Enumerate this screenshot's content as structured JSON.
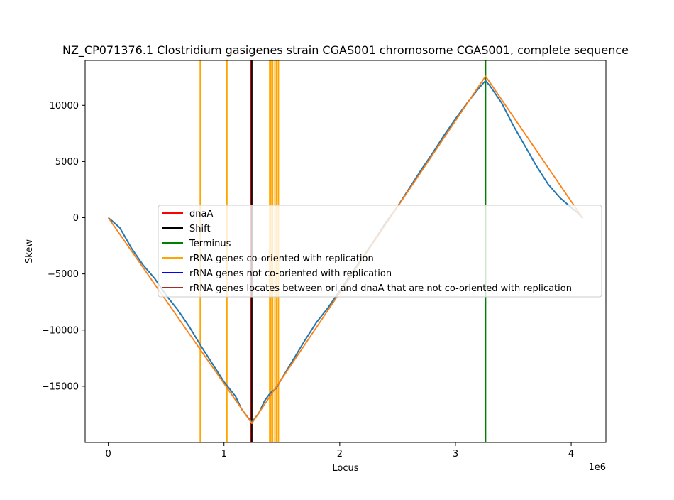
{
  "chart_data": {
    "type": "line",
    "title": "NZ_CP071376.1 Clostridium gasigenes strain CGAS001 chromosome CGAS001, complete sequence",
    "xlabel": "Locus",
    "ylabel": "Skew",
    "x_offset_label": "1e6",
    "xlim": [
      -200000,
      4300000
    ],
    "ylim": [
      -20000,
      14000
    ],
    "x_ticks": [
      0,
      1000000,
      2000000,
      3000000,
      4000000
    ],
    "x_tick_labels": [
      "0",
      "1",
      "2",
      "3",
      "4"
    ],
    "y_ticks": [
      -15000,
      -10000,
      -5000,
      0,
      5000,
      10000
    ],
    "y_tick_labels": [
      "−15000",
      "−10000",
      "−5000",
      "0",
      "5000",
      "10000"
    ],
    "grid": false,
    "legend_position": "center",
    "series": [
      {
        "color": "#1f77b4",
        "points": [
          [
            0,
            0
          ],
          [
            30000,
            -250
          ],
          [
            100000,
            -900
          ],
          [
            200000,
            -2700
          ],
          [
            300000,
            -4200
          ],
          [
            400000,
            -5400
          ],
          [
            500000,
            -6900
          ],
          [
            600000,
            -8200
          ],
          [
            700000,
            -9700
          ],
          [
            800000,
            -11400
          ],
          [
            900000,
            -13000
          ],
          [
            1000000,
            -14600
          ],
          [
            1100000,
            -15900
          ],
          [
            1150000,
            -17000
          ],
          [
            1200000,
            -17700
          ],
          [
            1240000,
            -18200
          ],
          [
            1300000,
            -17400
          ],
          [
            1350000,
            -16300
          ],
          [
            1400000,
            -15600
          ],
          [
            1450000,
            -15200
          ],
          [
            1500000,
            -14300
          ],
          [
            1600000,
            -12600
          ],
          [
            1700000,
            -10900
          ],
          [
            1800000,
            -9300
          ],
          [
            1900000,
            -8000
          ],
          [
            2000000,
            -6500
          ],
          [
            2100000,
            -5000
          ],
          [
            2200000,
            -3500
          ],
          [
            2300000,
            -2000
          ],
          [
            2400000,
            -400
          ],
          [
            2500000,
            1000
          ],
          [
            2600000,
            2600
          ],
          [
            2700000,
            4200
          ],
          [
            2800000,
            5700
          ],
          [
            2900000,
            7300
          ],
          [
            3000000,
            8800
          ],
          [
            3100000,
            10200
          ],
          [
            3200000,
            11500
          ],
          [
            3260000,
            12200
          ],
          [
            3300000,
            11700
          ],
          [
            3400000,
            10200
          ],
          [
            3500000,
            8200
          ],
          [
            3600000,
            6400
          ],
          [
            3700000,
            4600
          ],
          [
            3800000,
            3000
          ],
          [
            3900000,
            1800
          ],
          [
            4000000,
            900
          ],
          [
            4050000,
            500
          ],
          [
            4100000,
            -50
          ]
        ]
      },
      {
        "color": "#ff7f0e",
        "points": [
          [
            0,
            0
          ],
          [
            1240000,
            -18300
          ],
          [
            3260000,
            12600
          ],
          [
            4100000,
            -50
          ]
        ]
      }
    ],
    "vertical_lines": [
      {
        "label": "rRNA",
        "x": 795000,
        "color": "#ffa500"
      },
      {
        "label": "rRNA",
        "x": 1025000,
        "color": "#ffa500"
      },
      {
        "label": "rRNA",
        "x": 1395000,
        "color": "#ffa500"
      },
      {
        "label": "rRNA",
        "x": 1405000,
        "color": "#ffa500"
      },
      {
        "label": "rRNA",
        "x": 1420000,
        "color": "#ffa500"
      },
      {
        "label": "rRNA",
        "x": 1440000,
        "color": "#ffa500"
      },
      {
        "label": "rRNA",
        "x": 1455000,
        "color": "#ffa500"
      },
      {
        "label": "rRNA",
        "x": 1470000,
        "color": "#ffa500"
      },
      {
        "label": "dnaA",
        "x": 1232000,
        "color": "#ff0000"
      },
      {
        "label": "Shift",
        "x": 1240000,
        "color": "#000000"
      },
      {
        "label": "Terminus",
        "x": 3260000,
        "color": "#008000"
      }
    ],
    "legend": [
      {
        "label": "dnaA",
        "color": "#ff0000"
      },
      {
        "label": "Shift",
        "color": "#000000"
      },
      {
        "label": "Terminus",
        "color": "#008000"
      },
      {
        "label": "rRNA genes co-oriented with replication",
        "color": "#ffa500"
      },
      {
        "label": "rRNA genes not co-oriented with replication",
        "color": "#0000ff"
      },
      {
        "label": "rRNA genes locates between ori and dnaA that are not co-oriented with replication",
        "color": "#a52a2a"
      }
    ]
  }
}
